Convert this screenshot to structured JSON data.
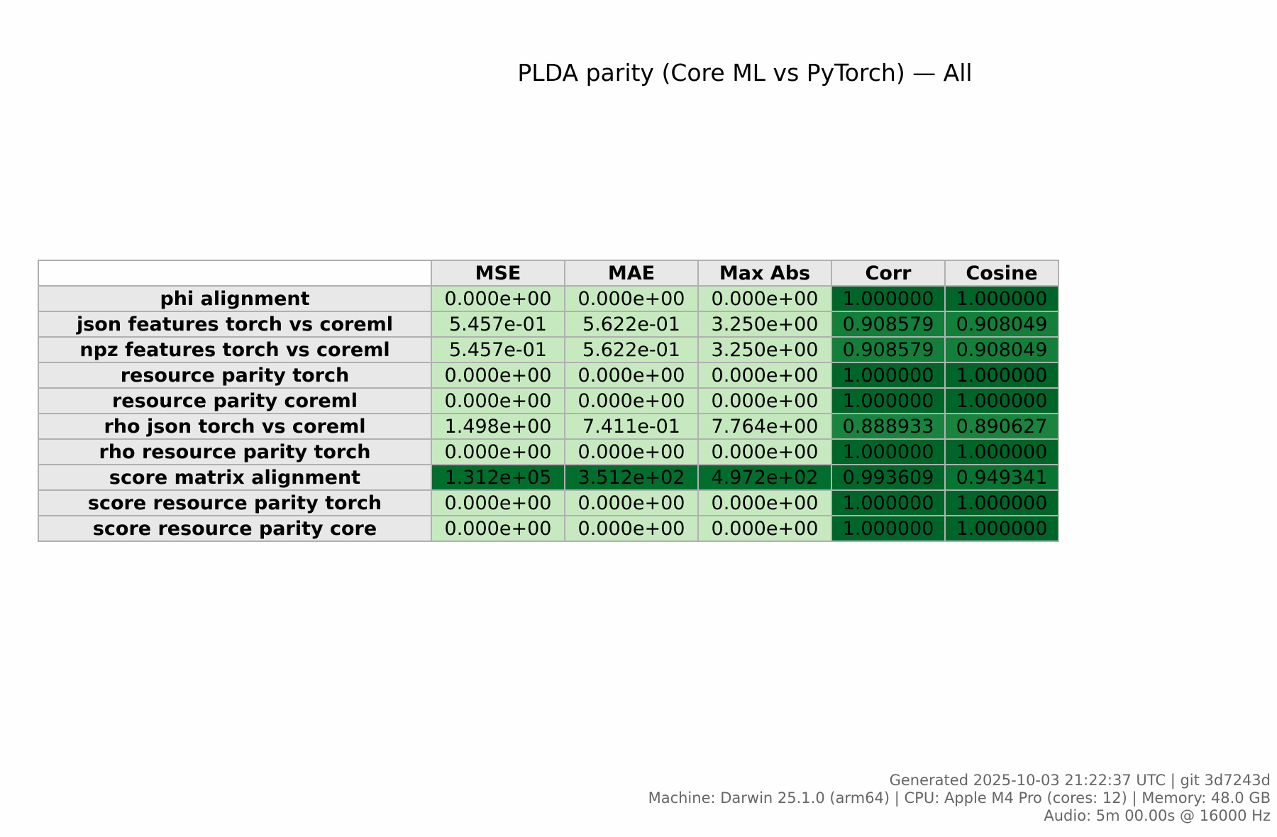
{
  "title": "PLDA parity (Core ML vs PyTorch) — All",
  "chart_data": {
    "type": "table",
    "title": "PLDA parity (Core ML vs PyTorch) — All",
    "columns": [
      "MSE",
      "MAE",
      "Max Abs",
      "Corr",
      "Cosine"
    ],
    "rows": [
      {
        "label": "phi alignment",
        "cells": [
          "0.000e+00",
          "0.000e+00",
          "0.000e+00",
          "1.000000",
          "1.000000"
        ],
        "values": [
          0,
          0,
          0,
          1.0,
          1.0
        ]
      },
      {
        "label": "json features torch vs coreml",
        "cells": [
          "5.457e-01",
          "5.622e-01",
          "3.250e+00",
          "0.908579",
          "0.908049"
        ],
        "values": [
          0.5457,
          0.5622,
          3.25,
          0.908579,
          0.908049
        ]
      },
      {
        "label": "npz features torch vs coreml",
        "cells": [
          "5.457e-01",
          "5.622e-01",
          "3.250e+00",
          "0.908579",
          "0.908049"
        ],
        "values": [
          0.5457,
          0.5622,
          3.25,
          0.908579,
          0.908049
        ]
      },
      {
        "label": "resource parity torch",
        "cells": [
          "0.000e+00",
          "0.000e+00",
          "0.000e+00",
          "1.000000",
          "1.000000"
        ],
        "values": [
          0,
          0,
          0,
          1.0,
          1.0
        ]
      },
      {
        "label": "resource parity coreml",
        "cells": [
          "0.000e+00",
          "0.000e+00",
          "0.000e+00",
          "1.000000",
          "1.000000"
        ],
        "values": [
          0,
          0,
          0,
          1.0,
          1.0
        ]
      },
      {
        "label": "rho json torch vs coreml",
        "cells": [
          "1.498e+00",
          "7.411e-01",
          "7.764e+00",
          "0.888933",
          "0.890627"
        ],
        "values": [
          1.498,
          0.7411,
          7.764,
          0.888933,
          0.890627
        ]
      },
      {
        "label": "rho resource parity torch",
        "cells": [
          "0.000e+00",
          "0.000e+00",
          "0.000e+00",
          "1.000000",
          "1.000000"
        ],
        "values": [
          0,
          0,
          0,
          1.0,
          1.0
        ]
      },
      {
        "label": "score matrix alignment",
        "cells": [
          "1.312e+05",
          "3.512e+02",
          "4.972e+02",
          "0.993609",
          "0.949341"
        ],
        "values": [
          131200,
          351.2,
          497.2,
          0.993609,
          0.949341
        ]
      },
      {
        "label": "score resource parity torch",
        "cells": [
          "0.000e+00",
          "0.000e+00",
          "0.000e+00",
          "1.000000",
          "1.000000"
        ],
        "values": [
          0,
          0,
          0,
          1.0,
          1.0
        ]
      },
      {
        "label": "score resource parity core",
        "cells": [
          "0.000e+00",
          "0.000e+00",
          "0.000e+00",
          "1.000000",
          "1.000000"
        ],
        "values": [
          0,
          0,
          0,
          1.0,
          1.0
        ]
      }
    ],
    "colormap": "Greens"
  },
  "footer": {
    "line1": "Generated 2025-10-03 21:22:37 UTC | git 3d7243d",
    "line2": "Machine: Darwin 25.1.0 (arm64) | CPU: Apple M4 Pro (cores: 12) | Memory: 48.0 GB",
    "line3": "Audio: 5m 00.00s @ 16000 Hz"
  }
}
